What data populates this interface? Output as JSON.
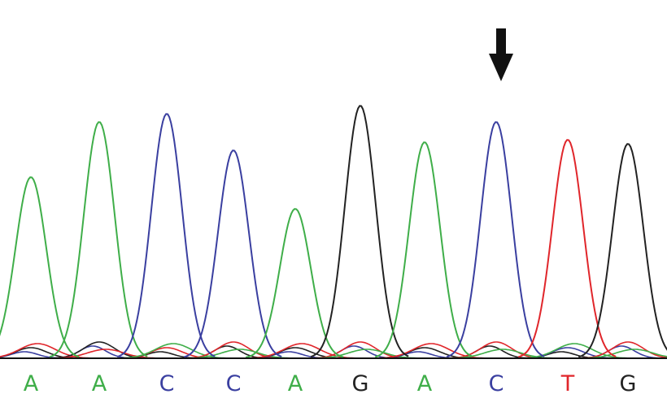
{
  "chart_data": {
    "type": "line",
    "title": "",
    "xlabel": "",
    "ylabel": "",
    "grid": false,
    "legend": "none",
    "base_colors": {
      "A": "#3fae49",
      "C": "#3a3fa0",
      "G": "#222222",
      "T": "#e0262b"
    },
    "bases": [
      "A",
      "A",
      "C",
      "C",
      "A",
      "G",
      "A",
      "C",
      "T",
      "G"
    ],
    "peak_heights": [
      223,
      291,
      301,
      256,
      184,
      311,
      266,
      291,
      269,
      264
    ],
    "marked_base_index": 7,
    "marker": "down-arrow"
  }
}
